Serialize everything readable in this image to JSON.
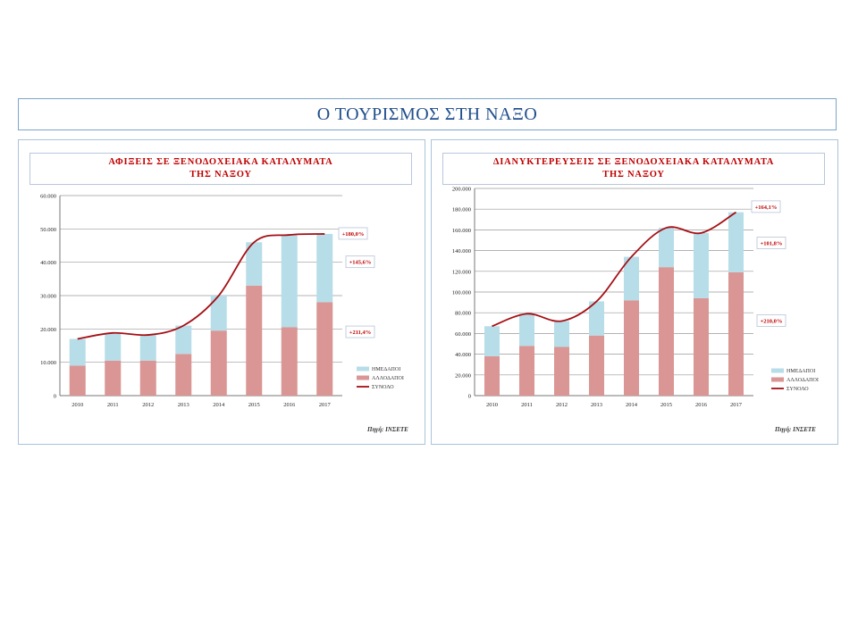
{
  "page_title": "Ο ΤΟΥΡΙΣΜΟΣ ΣΤΗ ΝΑΞΟ",
  "colors": {
    "domestic": "#b7dde8",
    "foreign": "#d99694",
    "total_line": "#a50f15",
    "label_text": "#c00000"
  },
  "chart_data": [
    {
      "type": "bar",
      "stacked": true,
      "title_line1": "ΑΦΙΞΕΙΣ  ΣΕ  ΞΕΝΟΔΟΧΕΙΑΚΑ  ΚΑΤΑΛΥΜΑΤΑ",
      "title_line2": "ΤΗΣ  ΝΑΞΟΥ",
      "categories": [
        "2010",
        "2011",
        "2012",
        "2013",
        "2014",
        "2015",
        "2016",
        "2017"
      ],
      "y_ticks": [
        "0",
        "10.000",
        "20.000",
        "30.000",
        "40.000",
        "50.000",
        "60.000"
      ],
      "ylim": [
        0,
        60000
      ],
      "series": [
        {
          "name": "ΑΛΛΟΔΑΠΟΙ",
          "values": [
            9000,
            10500,
            10500,
            12500,
            19500,
            33000,
            20500,
            28000
          ]
        },
        {
          "name": "ΗΜΕΔΑΠΟΙ",
          "values": [
            8000,
            8300,
            7700,
            8500,
            10500,
            13000,
            27700,
            20500
          ]
        }
      ],
      "line": {
        "name": "ΣΥΝΟΛΟ",
        "values": [
          17000,
          18800,
          18200,
          21000,
          30000,
          46000,
          48200,
          48500
        ]
      },
      "legend": {
        "position": "bottom-right",
        "entries": [
          "ΗΜΕΔΑΠΟΙ",
          "ΑΛΛΟΔΑΠΟΙ",
          "ΣΥΝΟΛΟ"
        ]
      },
      "annotations": [
        {
          "text": "+180,0%",
          "anchor_value": 48500
        },
        {
          "text": "+145,6%",
          "anchor_value": 40000
        },
        {
          "text": "+211,4%",
          "anchor_value": 19000
        }
      ],
      "source": "Πηγή: ΙΝΣΕΤΕ",
      "grid": true
    },
    {
      "type": "bar",
      "stacked": true,
      "title_line1": "ΔΙΑΝΥΚΤΕΡΕΥΣΕΙΣ  ΣΕ  ΞΕΝΟΔΟΧΕΙΑΚΑ  ΚΑΤΑΛΥΜΑΤΑ",
      "title_line2": "ΤΗΣ  ΝΑΞΟΥ",
      "categories": [
        "2010",
        "2011",
        "2012",
        "2013",
        "2014",
        "2015",
        "2016",
        "2017"
      ],
      "y_ticks": [
        "0",
        "20.000",
        "40.000",
        "60.000",
        "80.000",
        "100.000",
        "120.000",
        "140.000",
        "160.000",
        "180.000",
        "200.000"
      ],
      "ylim": [
        0,
        200000
      ],
      "series": [
        {
          "name": "ΑΛΛΟΔΑΠΟΙ",
          "values": [
            38000,
            48000,
            47000,
            58000,
            92000,
            124000,
            94000,
            119000
          ]
        },
        {
          "name": "ΗΜΕΔΑΠΟΙ",
          "values": [
            29000,
            31000,
            25000,
            33000,
            42000,
            38000,
            63000,
            58000
          ]
        }
      ],
      "line": {
        "name": "ΣΥΝΟΛΟ",
        "values": [
          67000,
          79000,
          72000,
          91000,
          134000,
          162000,
          157000,
          177000
        ]
      },
      "legend": {
        "position": "bottom-right",
        "entries": [
          "ΗΜΕΔΑΠΟΙ",
          "ΑΛΛΟΔΑΠΟΙ",
          "ΣΥΝΟΛΟ"
        ]
      },
      "annotations": [
        {
          "text": "+164,1%",
          "anchor_value": 182000
        },
        {
          "text": "+101,8%",
          "anchor_value": 147000
        },
        {
          "text": "+210,0%",
          "anchor_value": 72000
        }
      ],
      "source": "Πηγή: ΙΝΣΕΤΕ",
      "grid": true
    }
  ]
}
